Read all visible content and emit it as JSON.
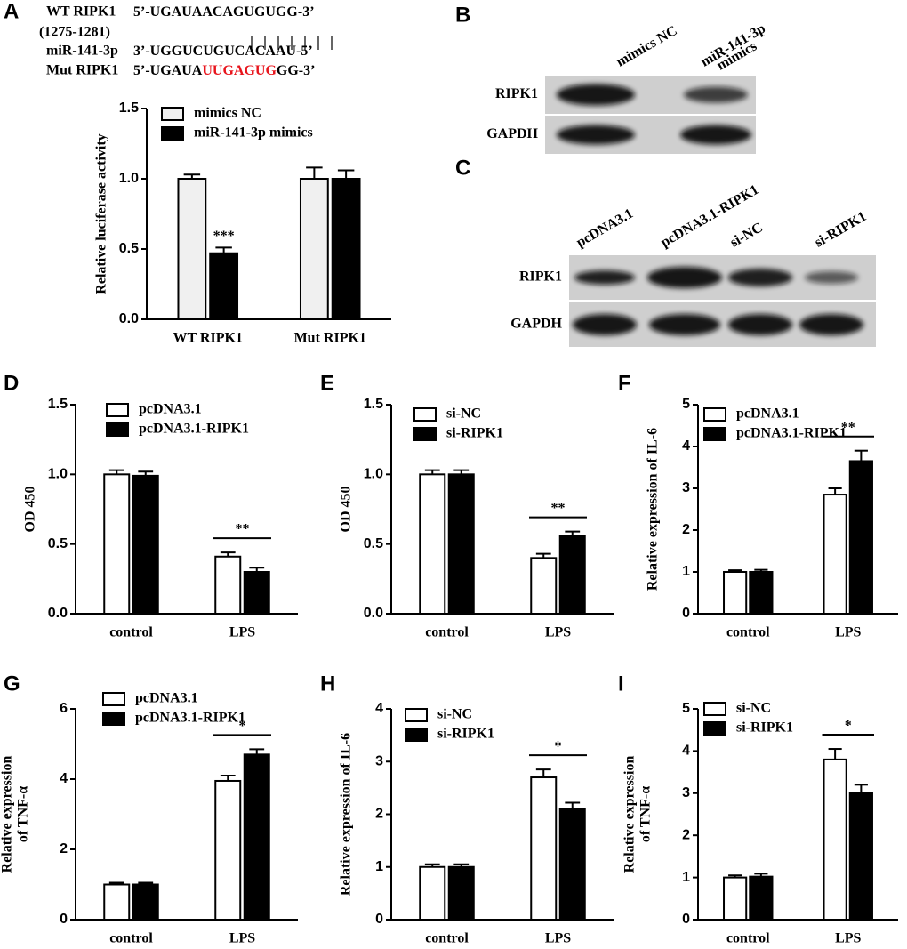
{
  "panel_labels": {
    "b": "B",
    "c": "C"
  },
  "sequence_panel": {
    "label": "A",
    "rows": [
      {
        "label": "WT RIPK1",
        "sequence": [
          {
            "text": "5’-UGAUAACAGUGUGG-3’"
          }
        ]
      },
      {
        "label": "(1275-1281)",
        "sequence": []
      },
      {
        "label": "miR-141-3p",
        "sequence": [
          {
            "text": "3’-UGGUCUGUCACAAU-5’"
          }
        ]
      },
      {
        "label": "Mut RIPK1",
        "sequence": [
          {
            "text": "5’-UGAUA"
          },
          {
            "text": "UUGAGUG",
            "color": "#e8141c"
          },
          {
            "text": "GG-3’"
          }
        ]
      }
    ]
  },
  "blot_b": {
    "columns": [
      [
        "mimics NC"
      ],
      [
        "miR-141-3p",
        "mimics"
      ]
    ],
    "rows": [
      "RIPK1",
      "GAPDH"
    ]
  },
  "blot_c": {
    "columns": [
      [
        "pcDNA3.1"
      ],
      [
        "pcDNA3.1-RIPK1"
      ],
      [
        "si-NC"
      ],
      [
        "si-RIPK1"
      ]
    ],
    "rows": [
      "RIPK1",
      "GAPDH"
    ]
  },
  "chart_data": [
    {
      "type": "bar",
      "label": "A",
      "y_label": [
        "Relative luciferase activity"
      ],
      "categories": [
        "WT RIPK1",
        "Mut RIPK1"
      ],
      "series": [
        {
          "name": "mimics NC",
          "color": "#f0f0f0",
          "values": [
            1.0,
            1.0
          ],
          "errors": [
            0.03,
            0.08
          ]
        },
        {
          "name": "miR-141-3p mimics",
          "color": "#000000",
          "values": [
            0.47,
            1.0
          ],
          "errors": [
            0.04,
            0.06
          ]
        }
      ],
      "ylim": [
        0,
        1.5
      ],
      "yticks": [
        {
          "value": 0,
          "label": "0.0"
        },
        {
          "value": 0.5,
          "label": "0.5"
        },
        {
          "value": 1,
          "label": "1.0"
        },
        {
          "value": 1.5,
          "label": "1.5"
        }
      ],
      "annotations": [
        "***"
      ]
    },
    {
      "type": "bar",
      "label": "D",
      "y_label": [
        "OD 450"
      ],
      "categories": [
        "control",
        "LPS"
      ],
      "series": [
        {
          "name": "pcDNA3.1",
          "color": "#ffffff",
          "values": [
            1.0,
            0.41
          ],
          "errors": [
            0.03,
            0.03
          ]
        },
        {
          "name": "pcDNA3.1-RIPK1",
          "color": "#000000",
          "values": [
            0.99,
            0.3
          ],
          "errors": [
            0.03,
            0.03
          ]
        }
      ],
      "ylim": [
        0,
        1.5
      ],
      "yticks": [
        {
          "value": 0,
          "label": "0.0"
        },
        {
          "value": 0.5,
          "label": "0.5"
        },
        {
          "value": 1,
          "label": "1.0"
        },
        {
          "value": 1.5,
          "label": "1.5"
        }
      ],
      "annotations": [
        "**"
      ]
    },
    {
      "type": "bar",
      "label": "E",
      "y_label": [
        "OD 450"
      ],
      "categories": [
        "control",
        "LPS"
      ],
      "series": [
        {
          "name": "si-NC",
          "color": "#ffffff",
          "values": [
            1.0,
            0.4
          ],
          "errors": [
            0.03,
            0.03
          ]
        },
        {
          "name": "si-RIPK1",
          "color": "#000000",
          "values": [
            1.0,
            0.56
          ],
          "errors": [
            0.03,
            0.03
          ]
        }
      ],
      "ylim": [
        0,
        1.5
      ],
      "yticks": [
        {
          "value": 0,
          "label": "0.0"
        },
        {
          "value": 0.5,
          "label": "0.5"
        },
        {
          "value": 1,
          "label": "1.0"
        },
        {
          "value": 1.5,
          "label": "1.5"
        }
      ],
      "annotations": [
        "**"
      ]
    },
    {
      "type": "bar",
      "label": "F",
      "y_label": [
        "Relative expression of IL-6"
      ],
      "categories": [
        "control",
        "LPS"
      ],
      "series": [
        {
          "name": "pcDNA3.1",
          "color": "#ffffff",
          "values": [
            1.0,
            2.85
          ],
          "errors": [
            0.04,
            0.15
          ]
        },
        {
          "name": "pcDNA3.1-RIPK1",
          "color": "#000000",
          "values": [
            1.0,
            3.65
          ],
          "errors": [
            0.05,
            0.25
          ]
        }
      ],
      "ylim": [
        0,
        5
      ],
      "yticks": [
        0,
        1,
        2,
        3,
        4,
        5
      ],
      "annotations": [
        "**"
      ]
    },
    {
      "type": "bar",
      "label": "G",
      "y_label": [
        "Relative expression",
        "of TNF-α"
      ],
      "categories": [
        "control",
        "LPS"
      ],
      "series": [
        {
          "name": "pcDNA3.1",
          "color": "#ffffff",
          "values": [
            1.0,
            3.95
          ],
          "errors": [
            0.05,
            0.15
          ]
        },
        {
          "name": "pcDNA3.1-RIPK1",
          "color": "#000000",
          "values": [
            1.0,
            4.7
          ],
          "errors": [
            0.05,
            0.15
          ]
        }
      ],
      "ylim": [
        0,
        6
      ],
      "yticks": [
        0,
        2,
        4,
        6
      ],
      "annotations": [
        "*"
      ]
    },
    {
      "type": "bar",
      "label": "H",
      "y_label": [
        "Relative expression of IL-6"
      ],
      "categories": [
        "control",
        "LPS"
      ],
      "series": [
        {
          "name": "si-NC",
          "color": "#ffffff",
          "values": [
            1.0,
            2.7
          ],
          "errors": [
            0.05,
            0.15
          ]
        },
        {
          "name": "si-RIPK1",
          "color": "#000000",
          "values": [
            1.0,
            2.1
          ],
          "errors": [
            0.05,
            0.12
          ]
        }
      ],
      "ylim": [
        0,
        4
      ],
      "yticks": [
        0,
        1,
        2,
        3,
        4
      ],
      "annotations": [
        "*"
      ]
    },
    {
      "type": "bar",
      "label": "I",
      "y_label": [
        "Relative expression",
        "of TNF-α"
      ],
      "categories": [
        "control",
        "LPS"
      ],
      "series": [
        {
          "name": "si-NC",
          "color": "#ffffff",
          "values": [
            1.0,
            3.8
          ],
          "errors": [
            0.05,
            0.25
          ]
        },
        {
          "name": "si-RIPK1",
          "color": "#000000",
          "values": [
            1.02,
            3.0
          ],
          "errors": [
            0.07,
            0.2
          ]
        }
      ],
      "ylim": [
        0,
        5
      ],
      "yticks": [
        0,
        1,
        2,
        3,
        4,
        5
      ],
      "annotations": [
        "*"
      ]
    }
  ]
}
